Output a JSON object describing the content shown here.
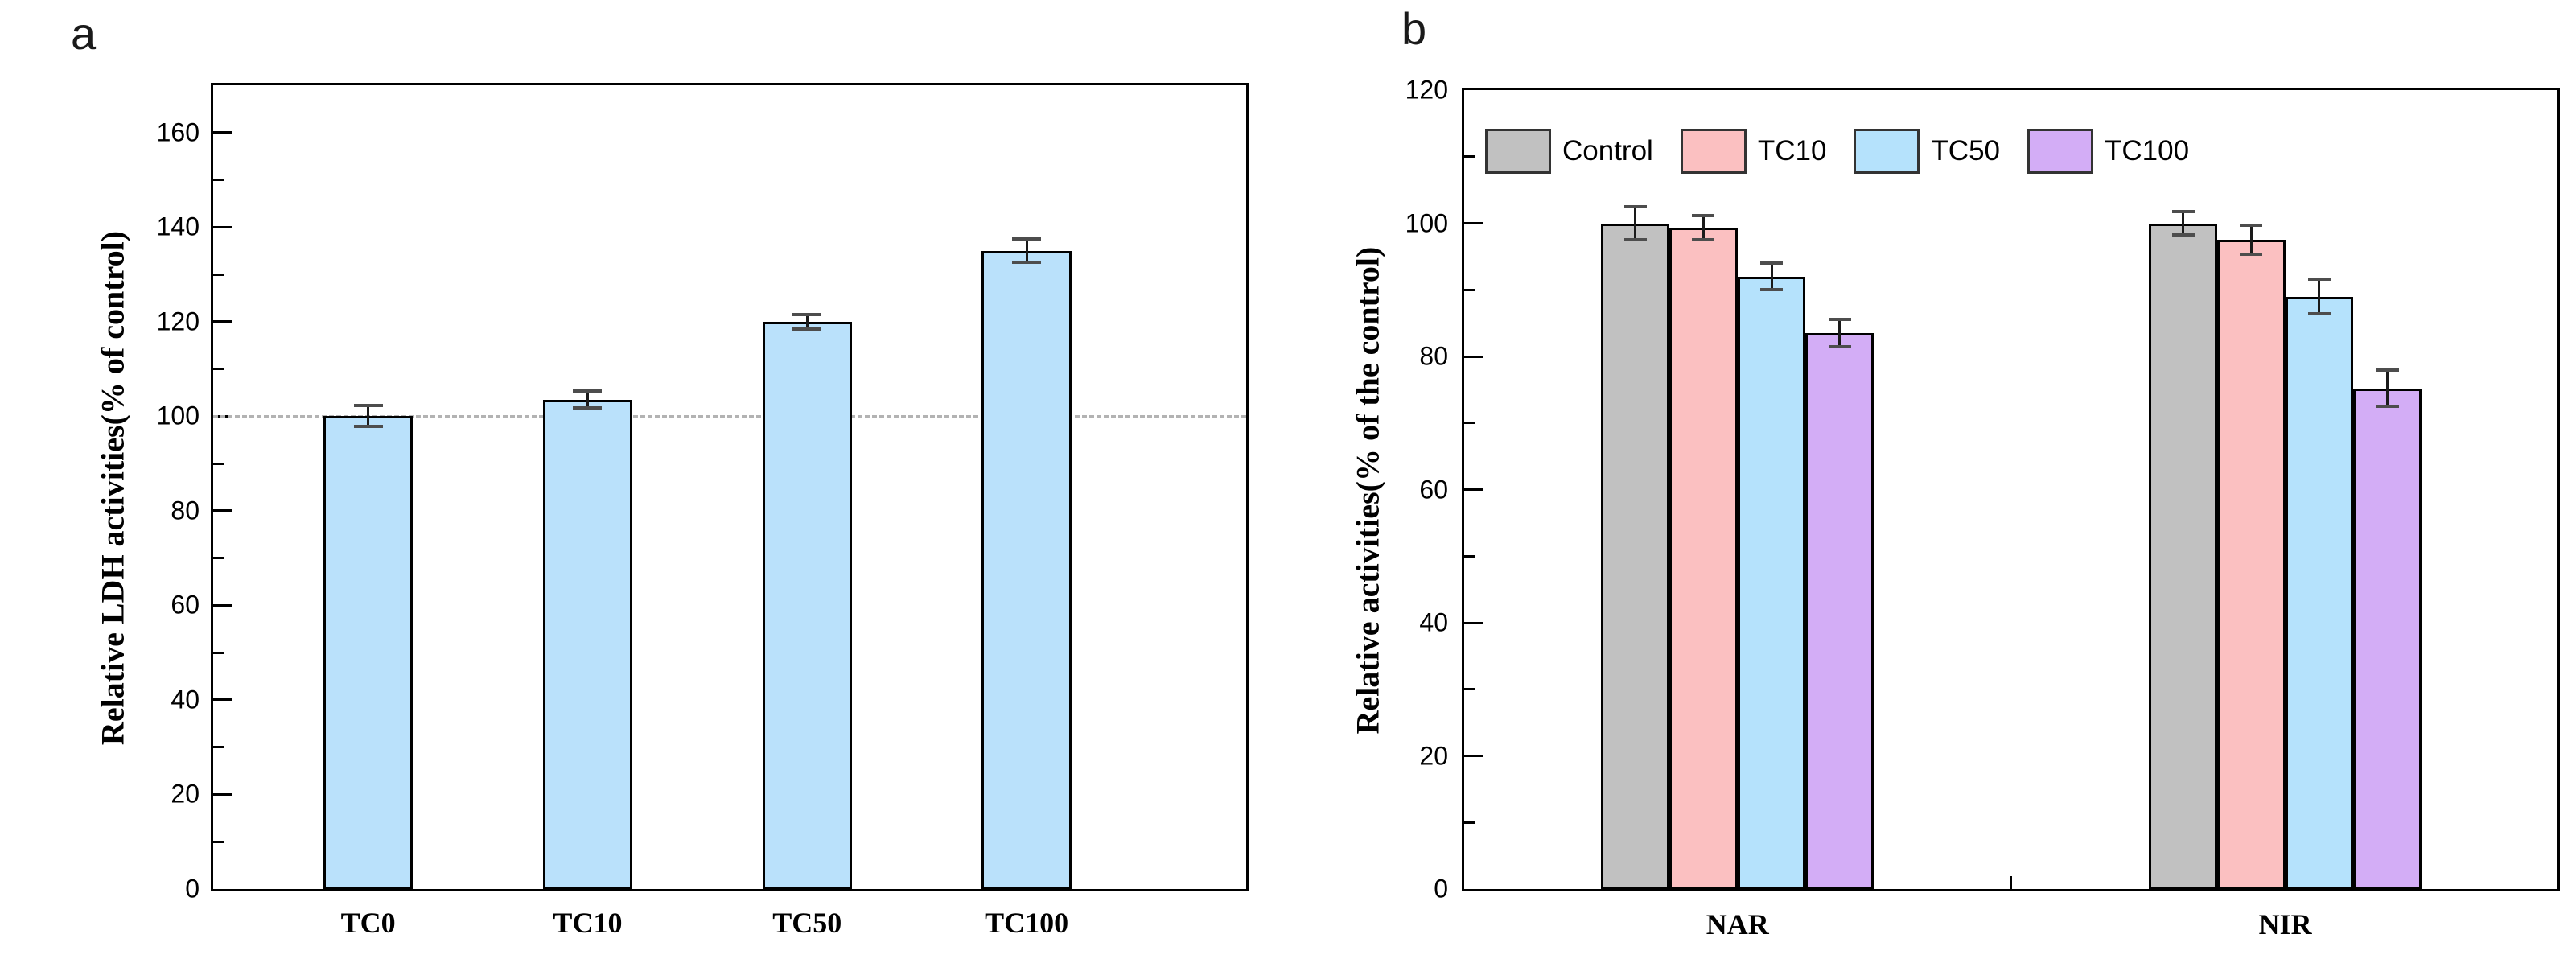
{
  "figure": {
    "background": "#ffffff"
  },
  "chart_data": [
    {
      "type": "bar",
      "panel_letter": "a",
      "ylabel": "Relative LDH activities(% of control)",
      "categories": [
        "TC0",
        "TC10",
        "TC50",
        "TC100"
      ],
      "values": [
        100,
        103.5,
        120,
        135
      ],
      "errors": [
        2.2,
        1.8,
        1.5,
        2.5
      ],
      "ylim": [
        0,
        170
      ],
      "ytick_major": 20,
      "ytick_minor": 10,
      "ytick_labels": [
        "0",
        "20",
        "40",
        "60",
        "80",
        "100",
        "120",
        "140",
        "160"
      ],
      "reference_line": 100,
      "bar_color": "#BAE1FB",
      "bar_edge_color": "#000000",
      "reference_line_color": "#b3b3b3",
      "grid": "off",
      "legend": "none"
    },
    {
      "type": "grouped-bar",
      "panel_letter": "b",
      "ylabel": "Relative activities(% of the control)",
      "categories": [
        "NAR",
        "NIR"
      ],
      "series": [
        {
          "name": "Control",
          "color": "#C1C1C1",
          "values": [
            100,
            100
          ],
          "errors": [
            2.5,
            1.7
          ]
        },
        {
          "name": "TC10",
          "color": "#FBC0C1",
          "values": [
            99.3,
            97.5
          ],
          "errors": [
            1.8,
            2.2
          ]
        },
        {
          "name": "TC50",
          "color": "#B5E2FC",
          "values": [
            92,
            89
          ],
          "errors": [
            2.0,
            2.6
          ]
        },
        {
          "name": "TC100",
          "color": "#D3ADF6",
          "values": [
            83.5,
            75.2
          ],
          "errors": [
            2.0,
            2.7
          ]
        }
      ],
      "ylim": [
        0,
        120
      ],
      "ytick_major": 20,
      "ytick_minor": 10,
      "ytick_labels": [
        "0",
        "20",
        "40",
        "60",
        "80",
        "100",
        "120"
      ],
      "bar_edge_color": "#000000",
      "grid": "off",
      "legend_position": "top-inside"
    }
  ]
}
